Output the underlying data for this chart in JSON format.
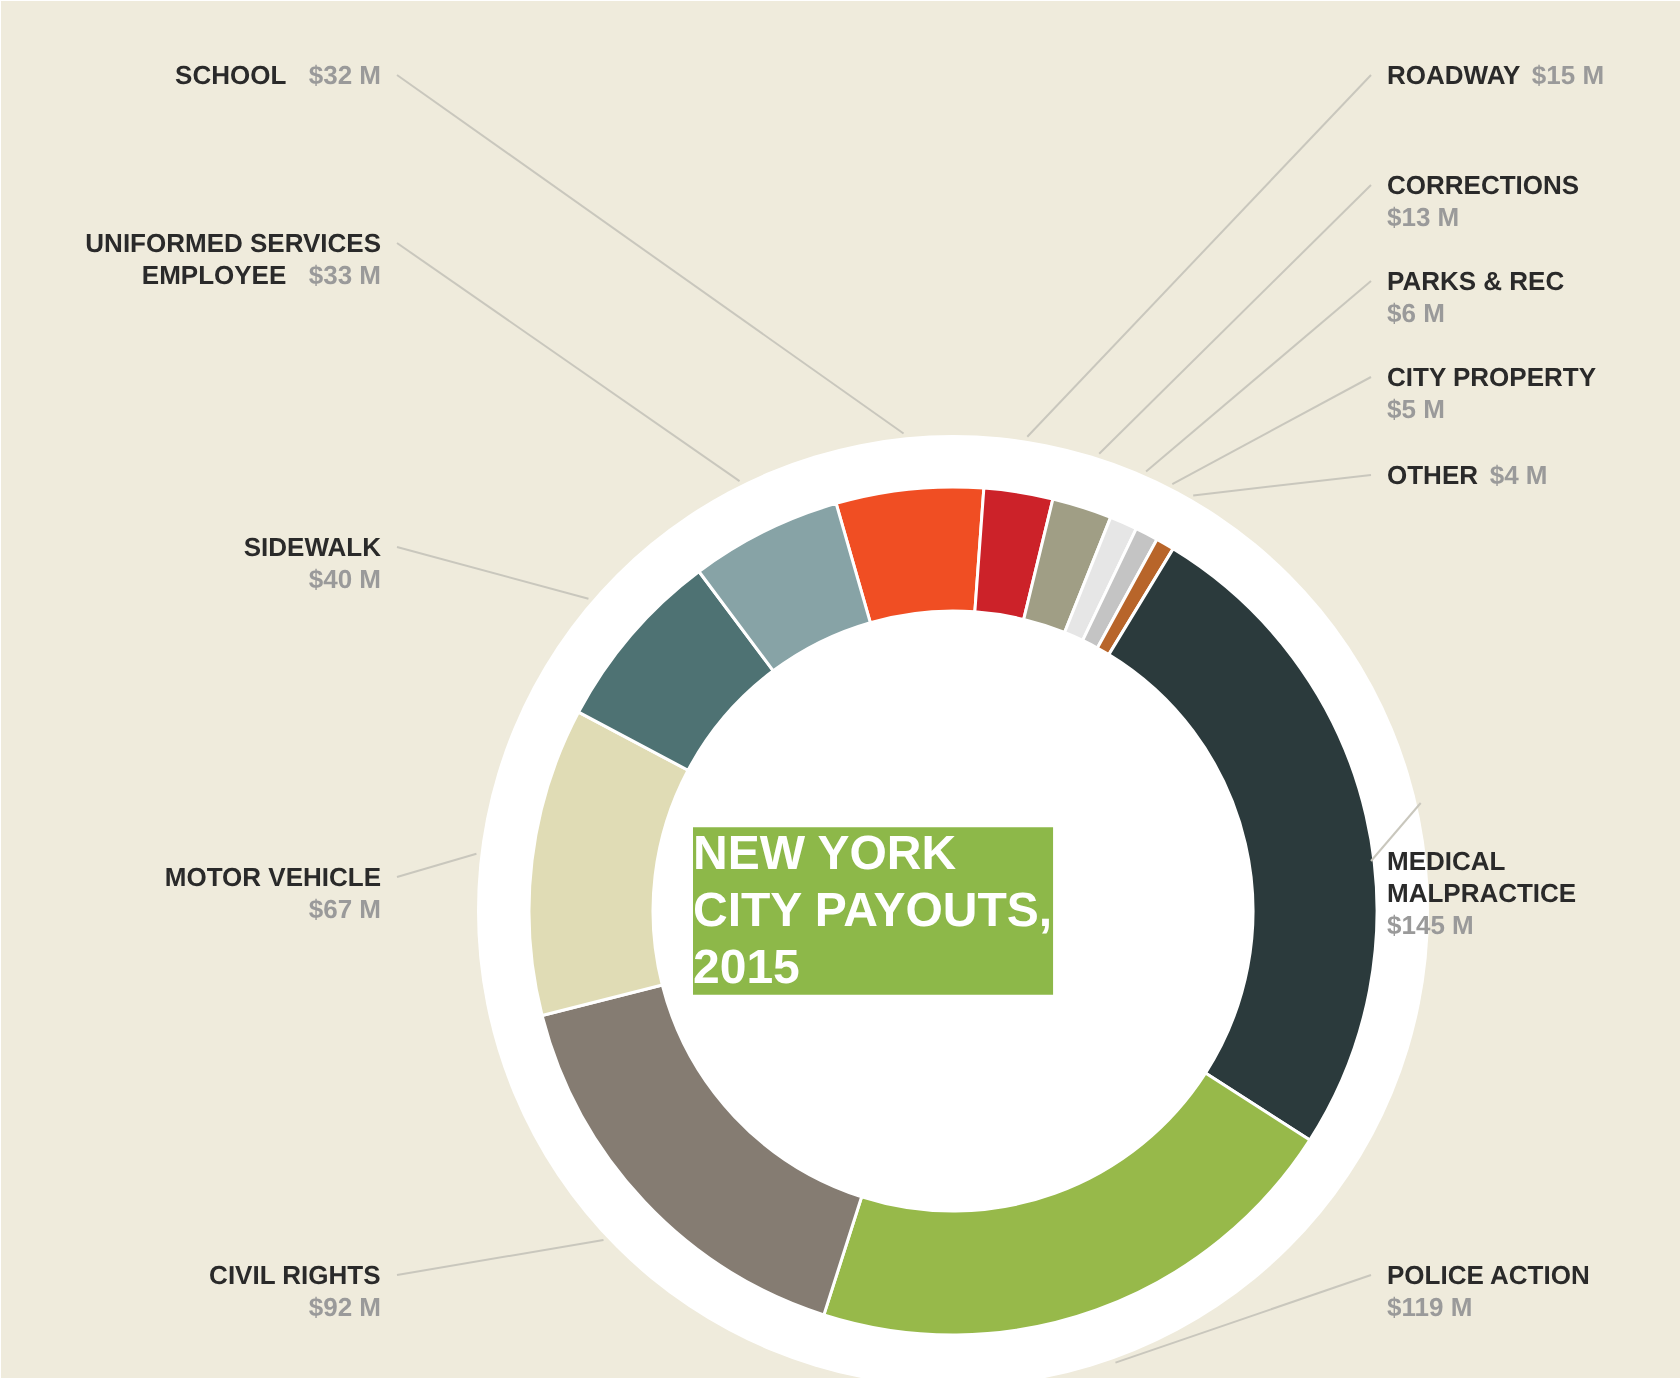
{
  "chart_data": {
    "type": "donut",
    "title": "NEW YORK\nCITY PAYOUTS,\n2015",
    "categories": [
      "SCHOOL",
      "ROADWAY",
      "CORRECTIONS",
      "PARKS & REC",
      "CITY PROPERTY",
      "OTHER",
      "MEDICAL MALPRACTICE",
      "POLICE ACTION",
      "CIVIL RIGHTS",
      "MOTOR VEHICLE",
      "SIDEWALK",
      "UNIFORMED SERVICES EMPLOYEE"
    ],
    "values": [
      32,
      15,
      13,
      6,
      5,
      4,
      145,
      119,
      92,
      67,
      40,
      33
    ],
    "value_labels": [
      "$32 M",
      "$15 M",
      "$13 M",
      "$6 M",
      "$5 M",
      "$4 M",
      "$145 M",
      "$119 M",
      "$92 M",
      "$67 M",
      "$40 M",
      "$33 M"
    ],
    "colors": [
      "#f04e23",
      "#cc2229",
      "#a09e85",
      "#e6e6e6",
      "#c4c4c4",
      "#b8652a",
      "#2b3a3c",
      "#97b94a",
      "#857c72",
      "#e0dcb5",
      "#4e7273",
      "#87a3a6"
    ]
  }
}
